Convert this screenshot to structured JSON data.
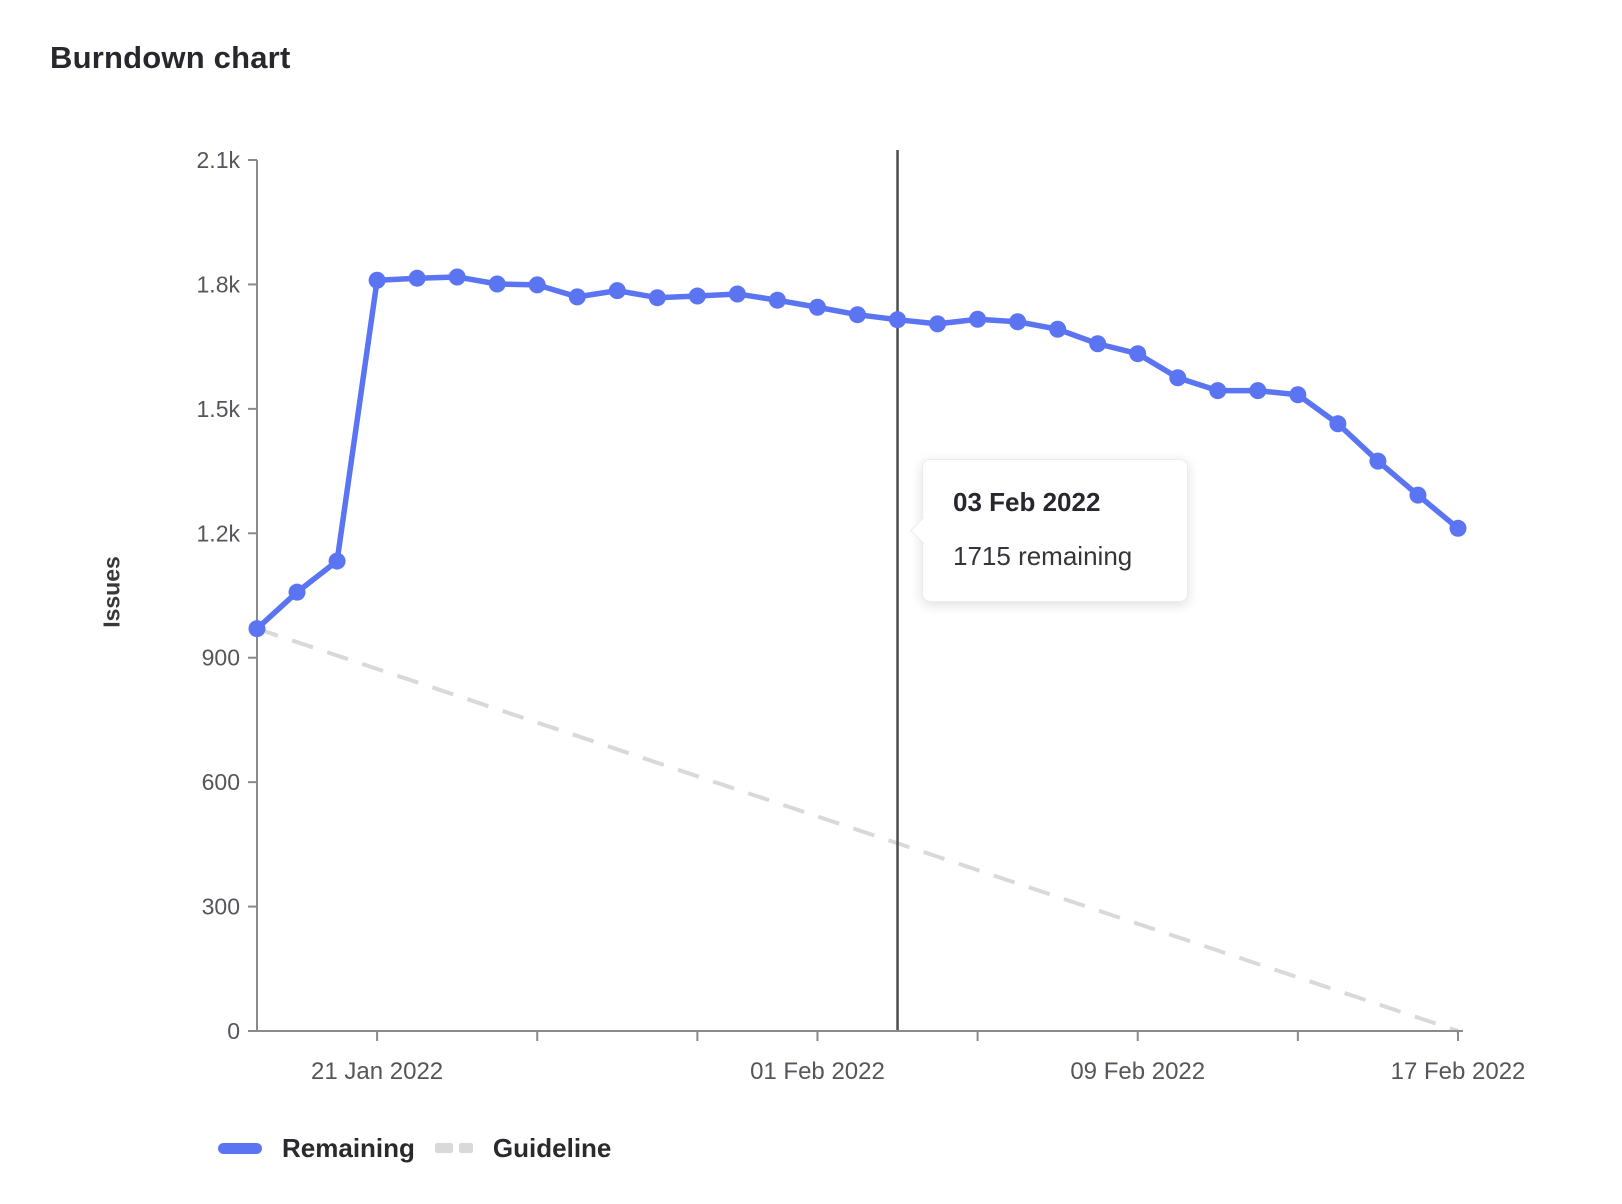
{
  "page": {
    "title": "Burndown chart"
  },
  "chart_data": {
    "type": "line",
    "title": "Burndown chart",
    "xlabel": "",
    "ylabel": "Issues",
    "ylim": [
      0,
      2100
    ],
    "grid": false,
    "legend_position": "bottom-left",
    "x_total_days": 30,
    "y_ticks": [
      {
        "value": 0,
        "label": "0"
      },
      {
        "value": 300,
        "label": "300"
      },
      {
        "value": 600,
        "label": "600"
      },
      {
        "value": 900,
        "label": "900"
      },
      {
        "value": 1200,
        "label": "1.2k"
      },
      {
        "value": 1500,
        "label": "1.5k"
      },
      {
        "value": 1800,
        "label": "1.8k"
      },
      {
        "value": 2100,
        "label": "2.1k"
      }
    ],
    "x_ticks": [
      {
        "day": 3,
        "label": "21 Jan 2022"
      },
      {
        "day": 7,
        "label": ""
      },
      {
        "day": 11,
        "label": ""
      },
      {
        "day": 14,
        "label": "01 Feb 2022"
      },
      {
        "day": 18,
        "label": ""
      },
      {
        "day": 22,
        "label": "09 Feb 2022"
      },
      {
        "day": 26,
        "label": ""
      },
      {
        "day": 30,
        "label": "17 Feb 2022"
      }
    ],
    "series": [
      {
        "name": "Remaining",
        "style": "solid",
        "color": "#5b74f2",
        "values": [
          970,
          1058,
          1133,
          1810,
          1815,
          1818,
          1801,
          1799,
          1770,
          1785,
          1768,
          1772,
          1777,
          1762,
          1745,
          1727,
          1715,
          1705,
          1716,
          1710,
          1692,
          1657,
          1633,
          1575,
          1544,
          1544,
          1534,
          1464,
          1374,
          1292,
          1212
        ]
      },
      {
        "name": "Guideline",
        "style": "dashed",
        "color": "#d9d9d9",
        "points": [
          {
            "day": 0,
            "value": 970
          },
          {
            "day": 30,
            "value": 0
          }
        ]
      }
    ],
    "marker": {
      "day": 16,
      "color": "#4d4c50"
    },
    "tooltip": {
      "title": "03 Feb 2022",
      "body": "1715 remaining"
    },
    "colors": {
      "remaining": "#5b74f2",
      "guideline": "#d9d9d9",
      "axis": "#8a898f",
      "tick_text": "#56555c",
      "marker_line": "#4d4c50"
    }
  }
}
